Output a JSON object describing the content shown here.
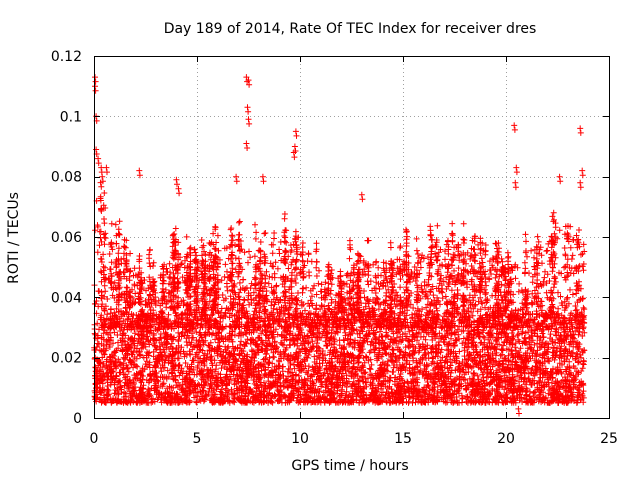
{
  "chart_data": {
    "type": "scatter",
    "title": "Day 189 of 2014, Rate Of TEC Index for receiver dres",
    "xlabel": "GPS time / hours",
    "ylabel": "ROTI / TECUs",
    "xlim": [
      0,
      25
    ],
    "ylim": [
      0,
      0.12
    ],
    "xticks": [
      0,
      5,
      10,
      15,
      20,
      25
    ],
    "xtick_labels": [
      "0",
      "5",
      "10",
      "15",
      "20",
      "25"
    ],
    "yticks": [
      0,
      0.02,
      0.04,
      0.06,
      0.08,
      0.1,
      0.12
    ],
    "ytick_labels": [
      "0",
      "0.02",
      "0.04",
      "0.06",
      "0.08",
      "0.1",
      "0.12"
    ],
    "grid": true,
    "marker": "plus",
    "color": "#ff0000",
    "x_extent": [
      0,
      23.8
    ],
    "notable_points": [
      {
        "x": 0.05,
        "y": 0.113
      },
      {
        "x": 0.05,
        "y": 0.11
      },
      {
        "x": 0.1,
        "y": 0.1
      },
      {
        "x": 0.1,
        "y": 0.089
      },
      {
        "x": 0.2,
        "y": 0.086
      },
      {
        "x": 0.35,
        "y": 0.083
      },
      {
        "x": 0.4,
        "y": 0.08
      },
      {
        "x": 0.6,
        "y": 0.083
      },
      {
        "x": 2.2,
        "y": 0.082
      },
      {
        "x": 4.0,
        "y": 0.079
      },
      {
        "x": 4.1,
        "y": 0.076
      },
      {
        "x": 7.4,
        "y": 0.113
      },
      {
        "x": 7.5,
        "y": 0.112
      },
      {
        "x": 7.45,
        "y": 0.103
      },
      {
        "x": 7.5,
        "y": 0.099
      },
      {
        "x": 7.4,
        "y": 0.091
      },
      {
        "x": 6.9,
        "y": 0.08
      },
      {
        "x": 8.2,
        "y": 0.08
      },
      {
        "x": 9.8,
        "y": 0.095
      },
      {
        "x": 9.75,
        "y": 0.09
      },
      {
        "x": 9.7,
        "y": 0.088
      },
      {
        "x": 13.0,
        "y": 0.074
      },
      {
        "x": 20.4,
        "y": 0.097
      },
      {
        "x": 20.5,
        "y": 0.083
      },
      {
        "x": 20.45,
        "y": 0.078
      },
      {
        "x": 22.6,
        "y": 0.08
      },
      {
        "x": 23.6,
        "y": 0.096
      },
      {
        "x": 23.7,
        "y": 0.082
      },
      {
        "x": 23.6,
        "y": 0.078
      },
      {
        "x": 20.6,
        "y": 0.003
      }
    ],
    "baseline_band": [
      0.005,
      0.035
    ],
    "upper_envelope": [
      {
        "x": 0,
        "y": 0.075
      },
      {
        "x": 1,
        "y": 0.06
      },
      {
        "x": 2,
        "y": 0.05
      },
      {
        "x": 3,
        "y": 0.045
      },
      {
        "x": 4,
        "y": 0.055
      },
      {
        "x": 5,
        "y": 0.05
      },
      {
        "x": 6,
        "y": 0.055
      },
      {
        "x": 7,
        "y": 0.06
      },
      {
        "x": 8,
        "y": 0.055
      },
      {
        "x": 9,
        "y": 0.06
      },
      {
        "x": 10,
        "y": 0.06
      },
      {
        "x": 11,
        "y": 0.05
      },
      {
        "x": 12,
        "y": 0.045
      },
      {
        "x": 13,
        "y": 0.055
      },
      {
        "x": 14,
        "y": 0.05
      },
      {
        "x": 15,
        "y": 0.055
      },
      {
        "x": 16,
        "y": 0.055
      },
      {
        "x": 17,
        "y": 0.06
      },
      {
        "x": 18,
        "y": 0.055
      },
      {
        "x": 19,
        "y": 0.06
      },
      {
        "x": 20,
        "y": 0.05
      },
      {
        "x": 21,
        "y": 0.055
      },
      {
        "x": 22,
        "y": 0.06
      },
      {
        "x": 23,
        "y": 0.065
      },
      {
        "x": 23.8,
        "y": 0.06
      }
    ]
  }
}
